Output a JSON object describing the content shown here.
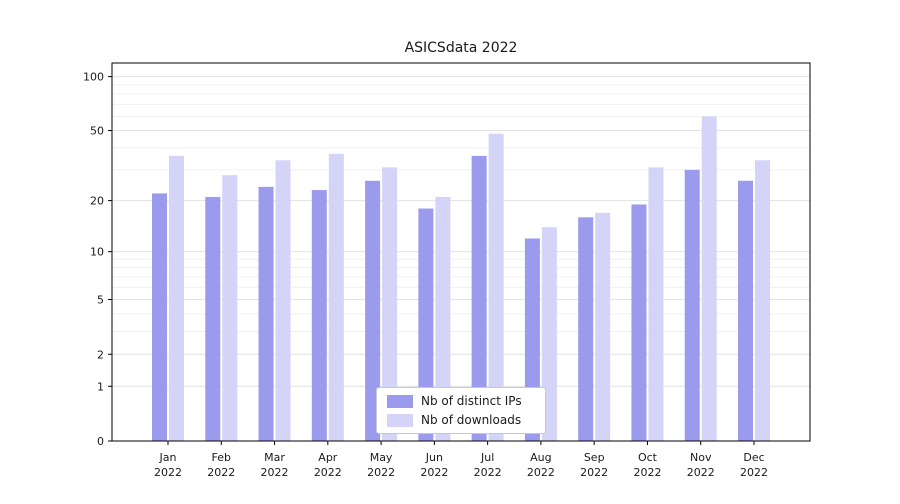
{
  "chart_data": {
    "type": "bar",
    "title": "ASICSdata 2022",
    "xlabel": "",
    "ylabel": "",
    "yscale": "log1p",
    "grid": true,
    "legend_position": "lower center",
    "year_label": "2022",
    "categories": [
      "Jan",
      "Feb",
      "Mar",
      "Apr",
      "May",
      "Jun",
      "Jul",
      "Aug",
      "Sep",
      "Oct",
      "Nov",
      "Dec"
    ],
    "series": [
      {
        "name": "Nb of distinct IPs",
        "color": "#9b9bee",
        "values": [
          22,
          21,
          24,
          23,
          26,
          18,
          36,
          12,
          16,
          19,
          30,
          26
        ]
      },
      {
        "name": "Nb of downloads",
        "color": "#d4d4f8",
        "values": [
          36,
          28,
          34,
          37,
          31,
          21,
          48,
          14,
          17,
          31,
          60,
          34
        ]
      }
    ],
    "y_major_ticks": [
      0,
      1,
      2,
      5,
      10,
      20,
      50,
      100
    ],
    "y_minor_ticks": [
      3,
      4,
      6,
      7,
      8,
      9,
      30,
      40,
      60,
      70,
      80,
      90
    ],
    "ylim_top": 119,
    "colors": {
      "axis": "#000000",
      "major_grid": "#e2e2e2",
      "minor_grid": "#f0f0f0",
      "text": "#1a1a1a"
    }
  }
}
